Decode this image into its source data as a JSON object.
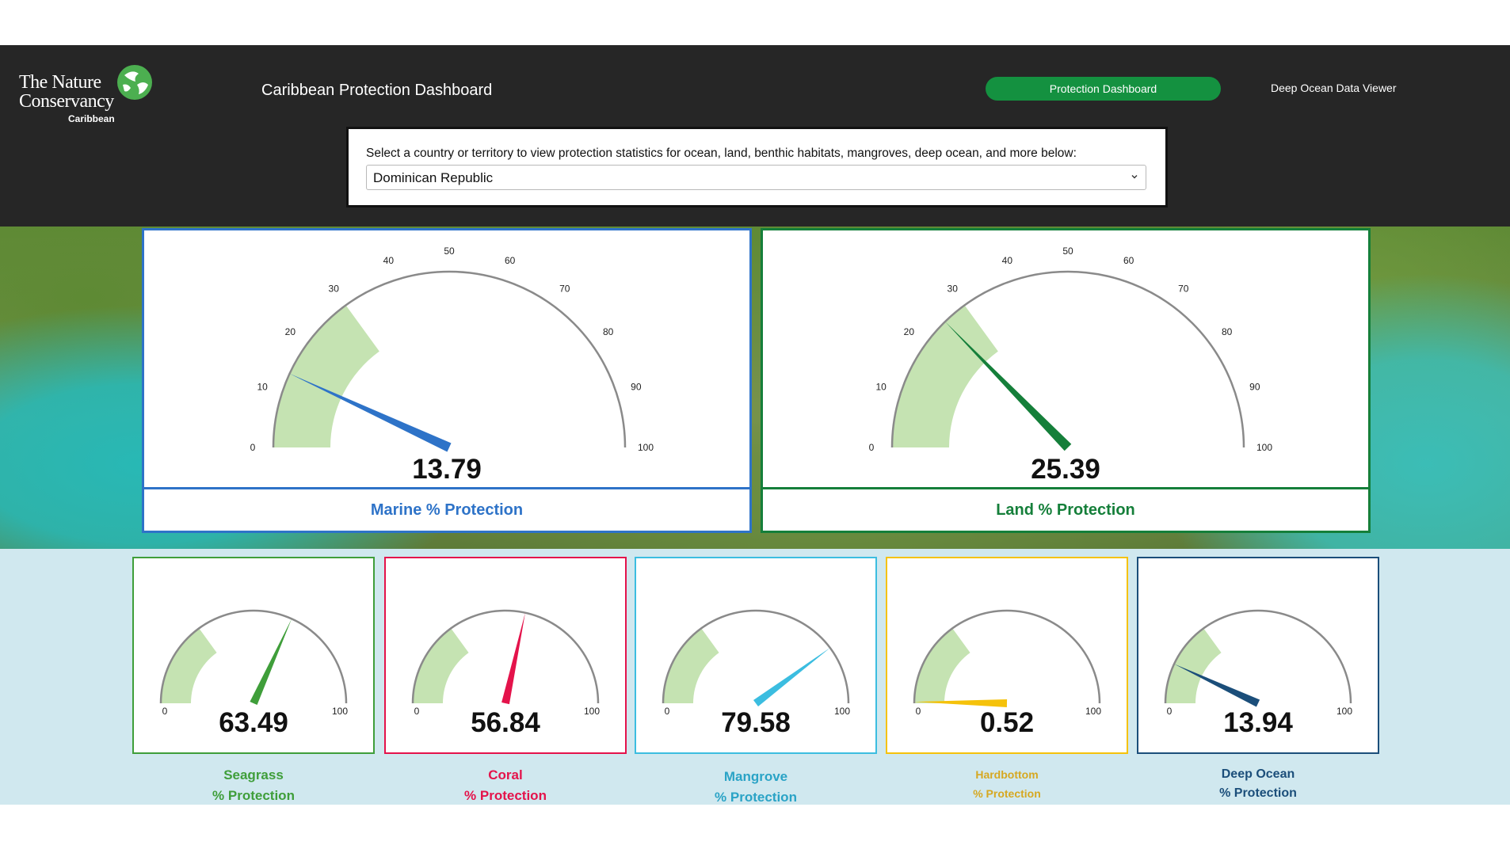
{
  "header": {
    "logo": {
      "line1": "The Nature",
      "line2": "Conservancy",
      "sub": "Caribbean"
    },
    "title": "Caribbean Protection Dashboard",
    "nav": {
      "active": "Protection Dashboard",
      "link": "Deep Ocean Data Viewer"
    },
    "selector": {
      "label": "Select a country or territory to view protection statistics for ocean, land, benthic habitats, mangroves, deep ocean, and more below:",
      "value": "Dominican Republic"
    }
  },
  "colors": {
    "header_bg": "#262626",
    "accent_green": "#149140",
    "gauge_band": "#c5e3b2",
    "gauge_arc": "#8a8a8a"
  },
  "gauges_big": [
    {
      "id": "marine",
      "value": 13.79,
      "value_text": "13.79",
      "label": "Marine % Protection",
      "color": "#2e73c8",
      "band": [
        0,
        30
      ],
      "ticks": [
        "0",
        "10",
        "20",
        "30",
        "40",
        "50",
        "60",
        "70",
        "80",
        "90",
        "100"
      ]
    },
    {
      "id": "land",
      "value": 25.39,
      "value_text": "25.39",
      "label": "Land % Protection",
      "color": "#157f3a",
      "band": [
        0,
        30
      ],
      "ticks": [
        "0",
        "10",
        "20",
        "30",
        "40",
        "50",
        "60",
        "70",
        "80",
        "90",
        "100"
      ]
    }
  ],
  "gauges_small": [
    {
      "id": "seagrass",
      "value": 63.49,
      "value_text": "63.49",
      "label1": "Seagrass",
      "label2": "% Protection",
      "color": "#3f9e3a",
      "band": [
        0,
        30
      ],
      "min": "0",
      "max": "100"
    },
    {
      "id": "coral",
      "value": 56.84,
      "value_text": "56.84",
      "label1": "Coral",
      "label2": "% Protection",
      "color": "#e4134b",
      "band": [
        0,
        30
      ],
      "min": "0",
      "max": "100"
    },
    {
      "id": "mangrove",
      "value": 79.58,
      "value_text": "79.58",
      "label1": "Mangrove",
      "label2": "% Protection",
      "color": "#3bbde0",
      "band": [
        0,
        30
      ],
      "min": "0",
      "max": "100"
    },
    {
      "id": "hardbottom",
      "value": 0.52,
      "value_text": "0.52",
      "label1": "Hardbottom",
      "label2": "% Protection",
      "color": "#f5c20b",
      "label_color": "#d6a821",
      "band": [
        0,
        30
      ],
      "min": "0",
      "max": "100"
    },
    {
      "id": "deep-ocean",
      "value": 13.94,
      "value_text": "13.94",
      "label1": "Deep Ocean",
      "label2": "% Protection",
      "color": "#1b4e7a",
      "band": [
        0,
        30
      ],
      "min": "0",
      "max": "100"
    }
  ]
}
